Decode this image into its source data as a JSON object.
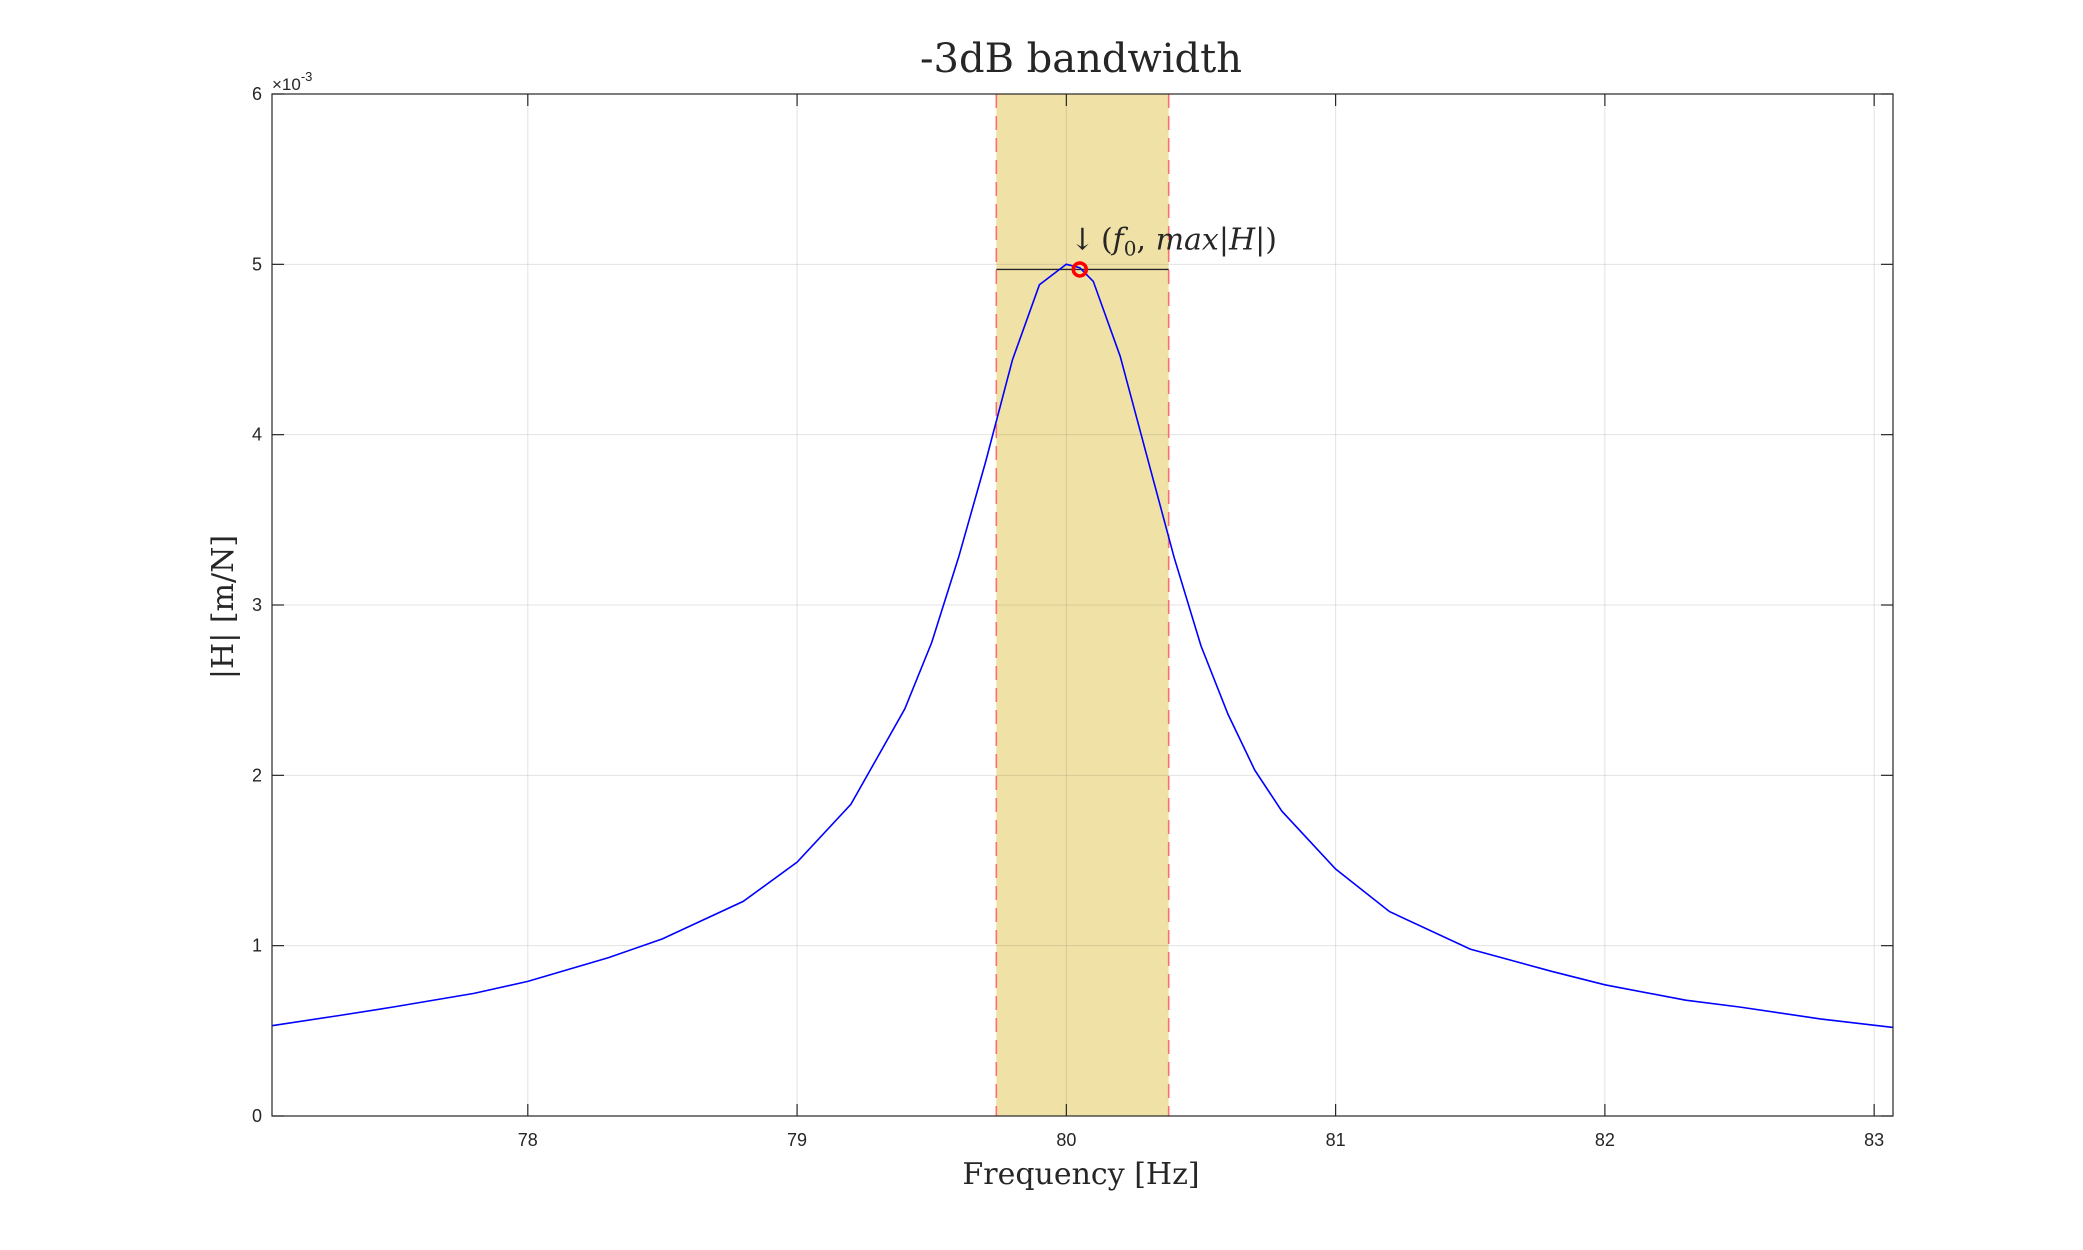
{
  "chart_data": {
    "type": "line",
    "title": "-3dB bandwidth",
    "xlabel": "Frequency [Hz]",
    "ylabel": "|H| [m/N]",
    "y_exponent_label": "×10",
    "y_exponent_power": "-3",
    "xlim": [
      77.05,
      83.07
    ],
    "ylim": [
      0,
      6
    ],
    "x_ticks": [
      78,
      79,
      80,
      81,
      82,
      83
    ],
    "y_ticks": [
      0,
      1,
      2,
      3,
      4,
      5,
      6
    ],
    "x_tick_labels": [
      "78",
      "79",
      "80",
      "81",
      "82",
      "83"
    ],
    "y_tick_labels": [
      "0",
      "1",
      "2",
      "3",
      "4",
      "5",
      "6"
    ],
    "grid": true,
    "series": [
      {
        "color": "#0000ff",
        "x": [
          77.05,
          77.3,
          77.5,
          77.8,
          78.0,
          78.3,
          78.5,
          78.8,
          79.0,
          79.2,
          79.4,
          79.5,
          79.6,
          79.7,
          79.8,
          79.9,
          80.0,
          80.05,
          80.1,
          80.2,
          80.3,
          80.4,
          80.5,
          80.6,
          80.7,
          80.8,
          81.0,
          81.2,
          81.5,
          81.8,
          82.0,
          82.3,
          82.5,
          82.8,
          83.07
        ],
        "y": [
          0.53,
          0.59,
          0.64,
          0.72,
          0.79,
          0.93,
          1.04,
          1.26,
          1.49,
          1.83,
          2.39,
          2.78,
          3.28,
          3.84,
          4.44,
          4.88,
          5.0,
          4.98,
          4.9,
          4.46,
          3.87,
          3.28,
          2.76,
          2.36,
          2.03,
          1.79,
          1.45,
          1.2,
          0.98,
          0.85,
          0.77,
          0.68,
          0.64,
          0.57,
          0.52
        ]
      }
    ],
    "bandwidth": {
      "f_low": 79.74,
      "f_high": 80.38,
      "fill": "#f0e2a6",
      "edge_color": "#ff6e6e"
    },
    "peak": {
      "x": 80.05,
      "y": 4.97,
      "marker_color": "#ff0000"
    },
    "annotation": {
      "arrow": "↓",
      "text_open": "(",
      "f": "f",
      "sub": "0",
      "comma": ", ",
      "max": "max",
      "bar1": "|",
      "H": "H",
      "bar2": "|",
      "text_close": ")"
    }
  }
}
